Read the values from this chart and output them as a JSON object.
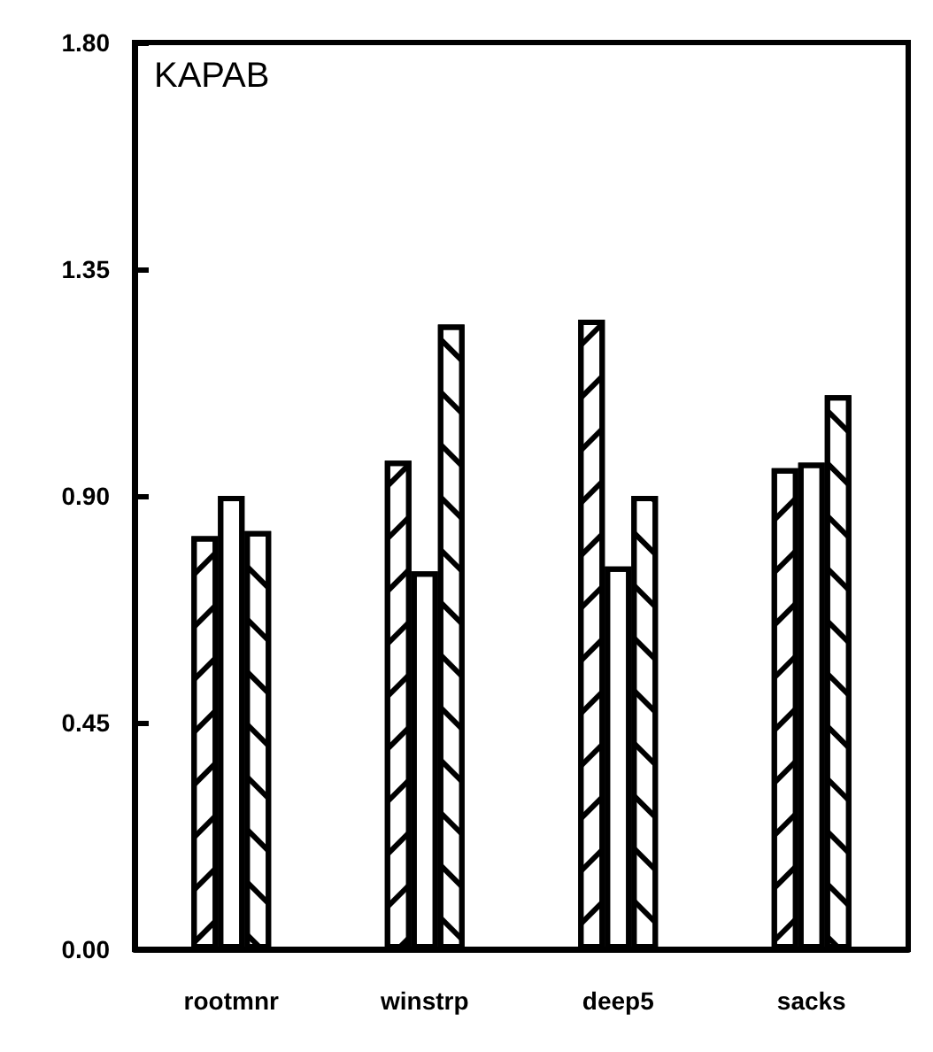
{
  "chart_data": {
    "type": "bar",
    "title": "KAPAB",
    "categories": [
      "rootmnr",
      "winstrp",
      "deep5",
      "sacks"
    ],
    "series": [
      {
        "color": "#ffffff",
        "values": [
          0.82,
          0.97,
          1.25,
          0.955
        ]
      },
      {
        "color": "#ffffff",
        "values": [
          0.9,
          0.75,
          0.76,
          0.966
        ]
      },
      {
        "color": "#ffffff",
        "values": [
          0.83,
          1.24,
          0.9,
          1.1
        ]
      }
    ],
    "ylim": [
      0,
      1.8
    ],
    "yticks": [
      {
        "value": 0,
        "label": "0.00"
      },
      {
        "value": 0.45,
        "label": "0.45"
      },
      {
        "value": 0.9,
        "label": "0.90"
      },
      {
        "value": 1.35,
        "label": "1.35"
      },
      {
        "value": 1.8,
        "label": "1.80"
      }
    ],
    "grid": false
  }
}
